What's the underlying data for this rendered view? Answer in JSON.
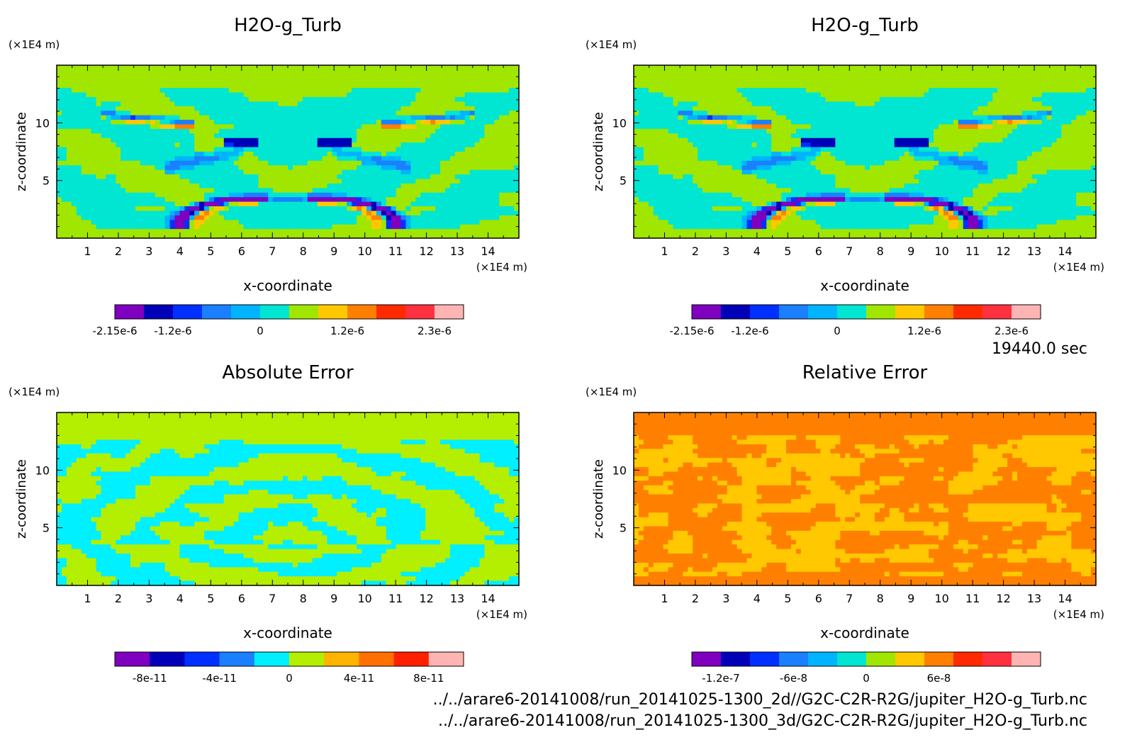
{
  "time_label": "19440.0 sec",
  "file_paths": [
    "../../arare6-20141008/run_20141025-1300_2d//G2C-C2R-R2G/jupiter_H2O-g_Turb.nc",
    "../../arare6-20141008/run_20141025-1300_3d/G2C-C2R-R2G/jupiter_H2O-g_Turb.nc"
  ],
  "chart_data": [
    {
      "type": "heatmap",
      "title": "H2O-g_Turb",
      "xlabel": "x-coordinate",
      "ylabel": "z-coordinate",
      "x_unit": "(×1E4 m)",
      "y_unit": "(×1E4 m)",
      "xlim": [
        0,
        15
      ],
      "ylim": [
        0,
        15
      ],
      "xticks": [
        "1",
        "2",
        "3",
        "4",
        "5",
        "6",
        "7",
        "8",
        "9",
        "10",
        "11",
        "12",
        "13",
        "14"
      ],
      "yticks": [
        "5",
        "10"
      ],
      "colorbar_colors": [
        "#7f00bf",
        "#0000b8",
        "#0030ff",
        "#1a80ff",
        "#00b4ff",
        "#00e6d2",
        "#a0e600",
        "#ffc800",
        "#ff8000",
        "#ff2a00",
        "#ff3040",
        "#ffb4b4"
      ],
      "colorbar_labels": [
        "-2.15e-6",
        "-1.2e-6",
        "0",
        "1.2e-6",
        "2.3e-6"
      ],
      "colorbar_label_positions": [
        0,
        2,
        5,
        8,
        11
      ],
      "field": "turb"
    },
    {
      "type": "heatmap",
      "title": "H2O-g_Turb",
      "xlabel": "x-coordinate",
      "ylabel": "z-coordinate",
      "x_unit": "(×1E4 m)",
      "y_unit": "(×1E4 m)",
      "xlim": [
        0,
        15
      ],
      "ylim": [
        0,
        15
      ],
      "xticks": [
        "1",
        "2",
        "3",
        "4",
        "5",
        "6",
        "7",
        "8",
        "9",
        "10",
        "11",
        "12",
        "13",
        "14"
      ],
      "yticks": [
        "5",
        "10"
      ],
      "colorbar_colors": [
        "#7f00bf",
        "#0000b8",
        "#0030ff",
        "#1a80ff",
        "#00b4ff",
        "#00e6d2",
        "#a0e600",
        "#ffc800",
        "#ff8000",
        "#ff2a00",
        "#ff3040",
        "#ffb4b4"
      ],
      "colorbar_labels": [
        "-2.15e-6",
        "-1.2e-6",
        "0",
        "1.2e-6",
        "2.3e-6"
      ],
      "colorbar_label_positions": [
        0,
        2,
        5,
        8,
        11
      ],
      "field": "turb"
    },
    {
      "type": "heatmap",
      "title": "Absolute Error",
      "xlabel": "x-coordinate",
      "ylabel": "z-coordinate",
      "x_unit": "(×1E4 m)",
      "y_unit": "(×1E4 m)",
      "xlim": [
        0,
        15
      ],
      "ylim": [
        0,
        15
      ],
      "xticks": [
        "1",
        "2",
        "3",
        "4",
        "5",
        "6",
        "7",
        "8",
        "9",
        "10",
        "11",
        "12",
        "13",
        "14"
      ],
      "yticks": [
        "5",
        "10"
      ],
      "colorbar_colors": [
        "#7f00bf",
        "#0000b8",
        "#0030ff",
        "#1a80ff",
        "#00f0ff",
        "#b4ee00",
        "#ffb400",
        "#ff7000",
        "#ff2000",
        "#ffb4b4"
      ],
      "colorbar_labels": [
        "-8e-11",
        "-4e-11",
        "0",
        "4e-11",
        "8e-11"
      ],
      "colorbar_label_positions": [
        1,
        3,
        5,
        7,
        9
      ],
      "field": "abs"
    },
    {
      "type": "heatmap",
      "title": "Relative Error",
      "xlabel": "x-coordinate",
      "ylabel": "z-coordinate",
      "x_unit": "(×1E4 m)",
      "y_unit": "(×1E4 m)",
      "xlim": [
        0,
        15
      ],
      "ylim": [
        0,
        15
      ],
      "xticks": [
        "1",
        "2",
        "3",
        "4",
        "5",
        "6",
        "7",
        "8",
        "9",
        "10",
        "11",
        "12",
        "13",
        "14"
      ],
      "yticks": [
        "5",
        "10"
      ],
      "colorbar_colors": [
        "#7f00bf",
        "#0000b8",
        "#0030ff",
        "#1a80ff",
        "#00b4ff",
        "#00e6d2",
        "#a0e600",
        "#ffc800",
        "#ff8000",
        "#ff2a00",
        "#ff3040",
        "#ffb4b4"
      ],
      "colorbar_labels": [
        "-1.2e-7",
        "-6e-8",
        "0",
        "6e-8"
      ],
      "colorbar_label_positions": [
        1,
        3.5,
        6,
        8.5
      ],
      "field": "rel"
    }
  ]
}
